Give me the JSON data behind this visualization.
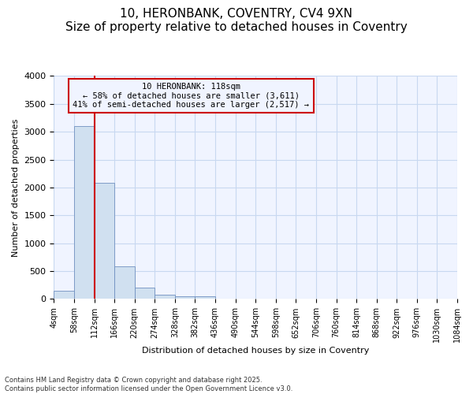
{
  "title": "10, HERONBANK, COVENTRY, CV4 9XN",
  "subtitle": "Size of property relative to detached houses in Coventry",
  "xlabel": "Distribution of detached houses by size in Coventry",
  "ylabel": "Number of detached properties",
  "footer_line1": "Contains HM Land Registry data © Crown copyright and database right 2025.",
  "footer_line2": "Contains public sector information licensed under the Open Government Licence v3.0.",
  "annotation_line1": "10 HERONBANK: 118sqm",
  "annotation_line2": "← 58% of detached houses are smaller (3,611)",
  "annotation_line3": "41% of semi-detached houses are larger (2,517) →",
  "bar_values": [
    150,
    3100,
    2080,
    580,
    210,
    80,
    55,
    50,
    5,
    2,
    1,
    0,
    0,
    0,
    0,
    0,
    0,
    0,
    0,
    0
  ],
  "bar_color": "#d0e0f0",
  "bar_edge_color": "#7090c0",
  "grid_color": "#c8d8f0",
  "background_color": "#ffffff",
  "plot_bg_color": "#f0f4ff",
  "red_line_x": 2,
  "bin_labels": [
    "4sqm",
    "58sqm",
    "112sqm",
    "166sqm",
    "220sqm",
    "274sqm",
    "328sqm",
    "382sqm",
    "436sqm",
    "490sqm",
    "544sqm",
    "598sqm",
    "652sqm",
    "706sqm",
    "760sqm",
    "814sqm",
    "868sqm",
    "922sqm",
    "976sqm",
    "1030sqm",
    "1084sqm"
  ],
  "ylim": [
    0,
    4000
  ],
  "yticks": [
    0,
    500,
    1000,
    1500,
    2000,
    2500,
    3000,
    3500,
    4000
  ],
  "annotation_box_color": "#cc0000",
  "title_fontsize": 11,
  "subtitle_fontsize": 9,
  "axis_label_fontsize": 8,
  "tick_fontsize": 7,
  "footer_fontsize": 6
}
